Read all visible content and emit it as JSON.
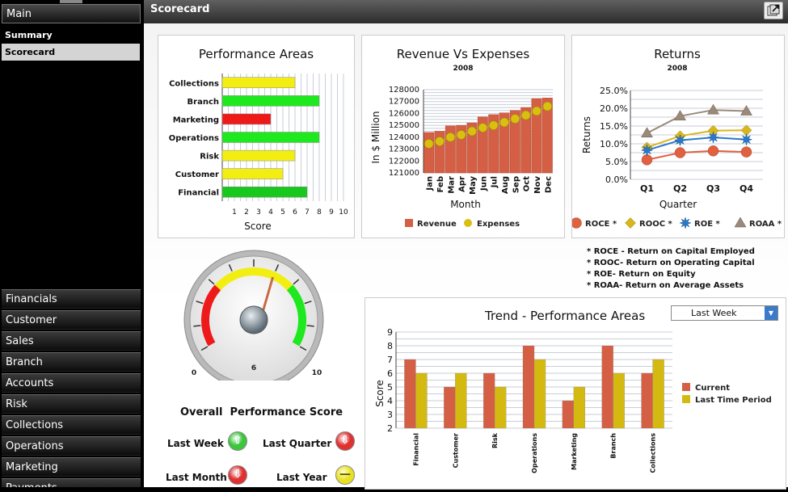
{
  "sidebar": {
    "main_label": "Main",
    "sub_items": [
      {
        "label": "Summary",
        "selected": false
      },
      {
        "label": "Scorecard",
        "selected": true
      }
    ],
    "sections": [
      "Financials",
      "Customer",
      "Sales",
      "Branch",
      "Accounts",
      "Risk",
      "Collections",
      "Operations",
      "Marketing",
      "Payments"
    ]
  },
  "header": {
    "title": "Scorecard",
    "action_icon": "export-icon"
  },
  "chart_data": [
    {
      "id": "performance",
      "type": "bar",
      "orientation": "horizontal",
      "title": "Performance Areas",
      "categories": [
        "Collections",
        "Branch",
        "Marketing",
        "Operations",
        "Risk",
        "Customer",
        "Financial"
      ],
      "values": [
        6,
        8,
        4,
        8,
        6,
        5,
        7
      ],
      "colors": [
        "#f2ee12",
        "#1ee81e",
        "#ee1a1a",
        "#1ee81e",
        "#f2ee12",
        "#f2ee12",
        "#19c81c"
      ],
      "xlabel": "Score",
      "xlim": [
        0,
        10
      ],
      "xticks": [
        1,
        2,
        3,
        4,
        5,
        6,
        7,
        8,
        9,
        10
      ]
    },
    {
      "id": "revenue",
      "type": "bar",
      "title": "Revenue Vs Expenses",
      "subtitle": "2008",
      "categories": [
        "Jan",
        "Feb",
        "Mar",
        "Apr",
        "May",
        "Jun",
        "Jul",
        "Aug",
        "Sep",
        "Oct",
        "Nov",
        "Dec"
      ],
      "series": [
        {
          "name": "Revenue",
          "type": "bar",
          "color": "#d45f44",
          "values": [
            124400,
            124500,
            124950,
            125000,
            125200,
            125700,
            125900,
            126050,
            126250,
            126500,
            127250,
            127300
          ]
        },
        {
          "name": "Expenses",
          "type": "line-marker",
          "color": "#d9c010",
          "values": [
            123450,
            123650,
            124000,
            124200,
            124500,
            124800,
            125000,
            125250,
            125550,
            125850,
            126200,
            126600
          ]
        }
      ],
      "xlabel": "Month",
      "ylabel": "In $ Million",
      "ylim": [
        121000,
        128000
      ],
      "yticks": [
        121000,
        122000,
        123000,
        124000,
        125000,
        126000,
        127000,
        128000
      ]
    },
    {
      "id": "returns",
      "type": "line",
      "title": "Returns",
      "subtitle": "2008",
      "categories": [
        "Q1",
        "Q2",
        "Q3",
        "Q4"
      ],
      "series": [
        {
          "name": "ROCE *",
          "marker": "circle",
          "color": "#e06040",
          "values": [
            5.5,
            7.5,
            8.0,
            7.7
          ]
        },
        {
          "name": "ROOC *",
          "marker": "diamond",
          "color": "#d9b61a",
          "values": [
            9.0,
            12.2,
            13.7,
            13.8
          ]
        },
        {
          "name": "ROE *",
          "marker": "star",
          "color": "#2a78c8",
          "values": [
            8.2,
            11.0,
            11.8,
            11.2
          ]
        },
        {
          "name": "ROAA *",
          "marker": "triangle",
          "color": "#9a8a7a",
          "values": [
            13.0,
            17.8,
            19.5,
            19.2
          ]
        }
      ],
      "xlabel": "Quarter",
      "ylabel": "Returns",
      "ylim": [
        0,
        25
      ],
      "yticks": [
        "0.0%",
        "5.0%",
        "10.0%",
        "15.0%",
        "20.0%",
        "25.0%"
      ]
    },
    {
      "id": "trend",
      "type": "bar",
      "title": "Trend - Performance Areas",
      "categories": [
        "Financial",
        "Customer",
        "Risk",
        "Operations",
        "Marketing",
        "Branch",
        "Collections"
      ],
      "series": [
        {
          "name": "Current",
          "color": "#d45f44",
          "values": [
            7,
            5,
            6,
            8,
            4,
            8,
            6
          ]
        },
        {
          "name": "Last Time Period",
          "color": "#d4ba10",
          "values": [
            6,
            6,
            5,
            7,
            5,
            6,
            7
          ]
        }
      ],
      "ylabel": "Score",
      "ylim": [
        2,
        9
      ],
      "yticks": [
        2,
        3,
        4,
        5,
        6,
        7,
        8,
        9
      ]
    }
  ],
  "gauge": {
    "value": 6,
    "min_label": "0",
    "mid_label": "6",
    "max_label": "10",
    "title": "Overall  Performance Score"
  },
  "notes": [
    "* ROCE - Return on Capital Employed",
    "* ROOC- Return on Operating Capital",
    "* ROE- Return on Equity",
    "* ROAA- Return on Average Assets"
  ],
  "period_dropdown": {
    "selected": "Last Week"
  },
  "period_indicators": [
    {
      "label": "Last Week",
      "trend": "up",
      "color": "#3cc63c"
    },
    {
      "label": "Last Quarter",
      "trend": "down",
      "color": "#e03030"
    },
    {
      "label": "Last Month",
      "trend": "down",
      "color": "#e03030"
    },
    {
      "label": "Last Year",
      "trend": "flat",
      "color": "#e8e020"
    }
  ]
}
